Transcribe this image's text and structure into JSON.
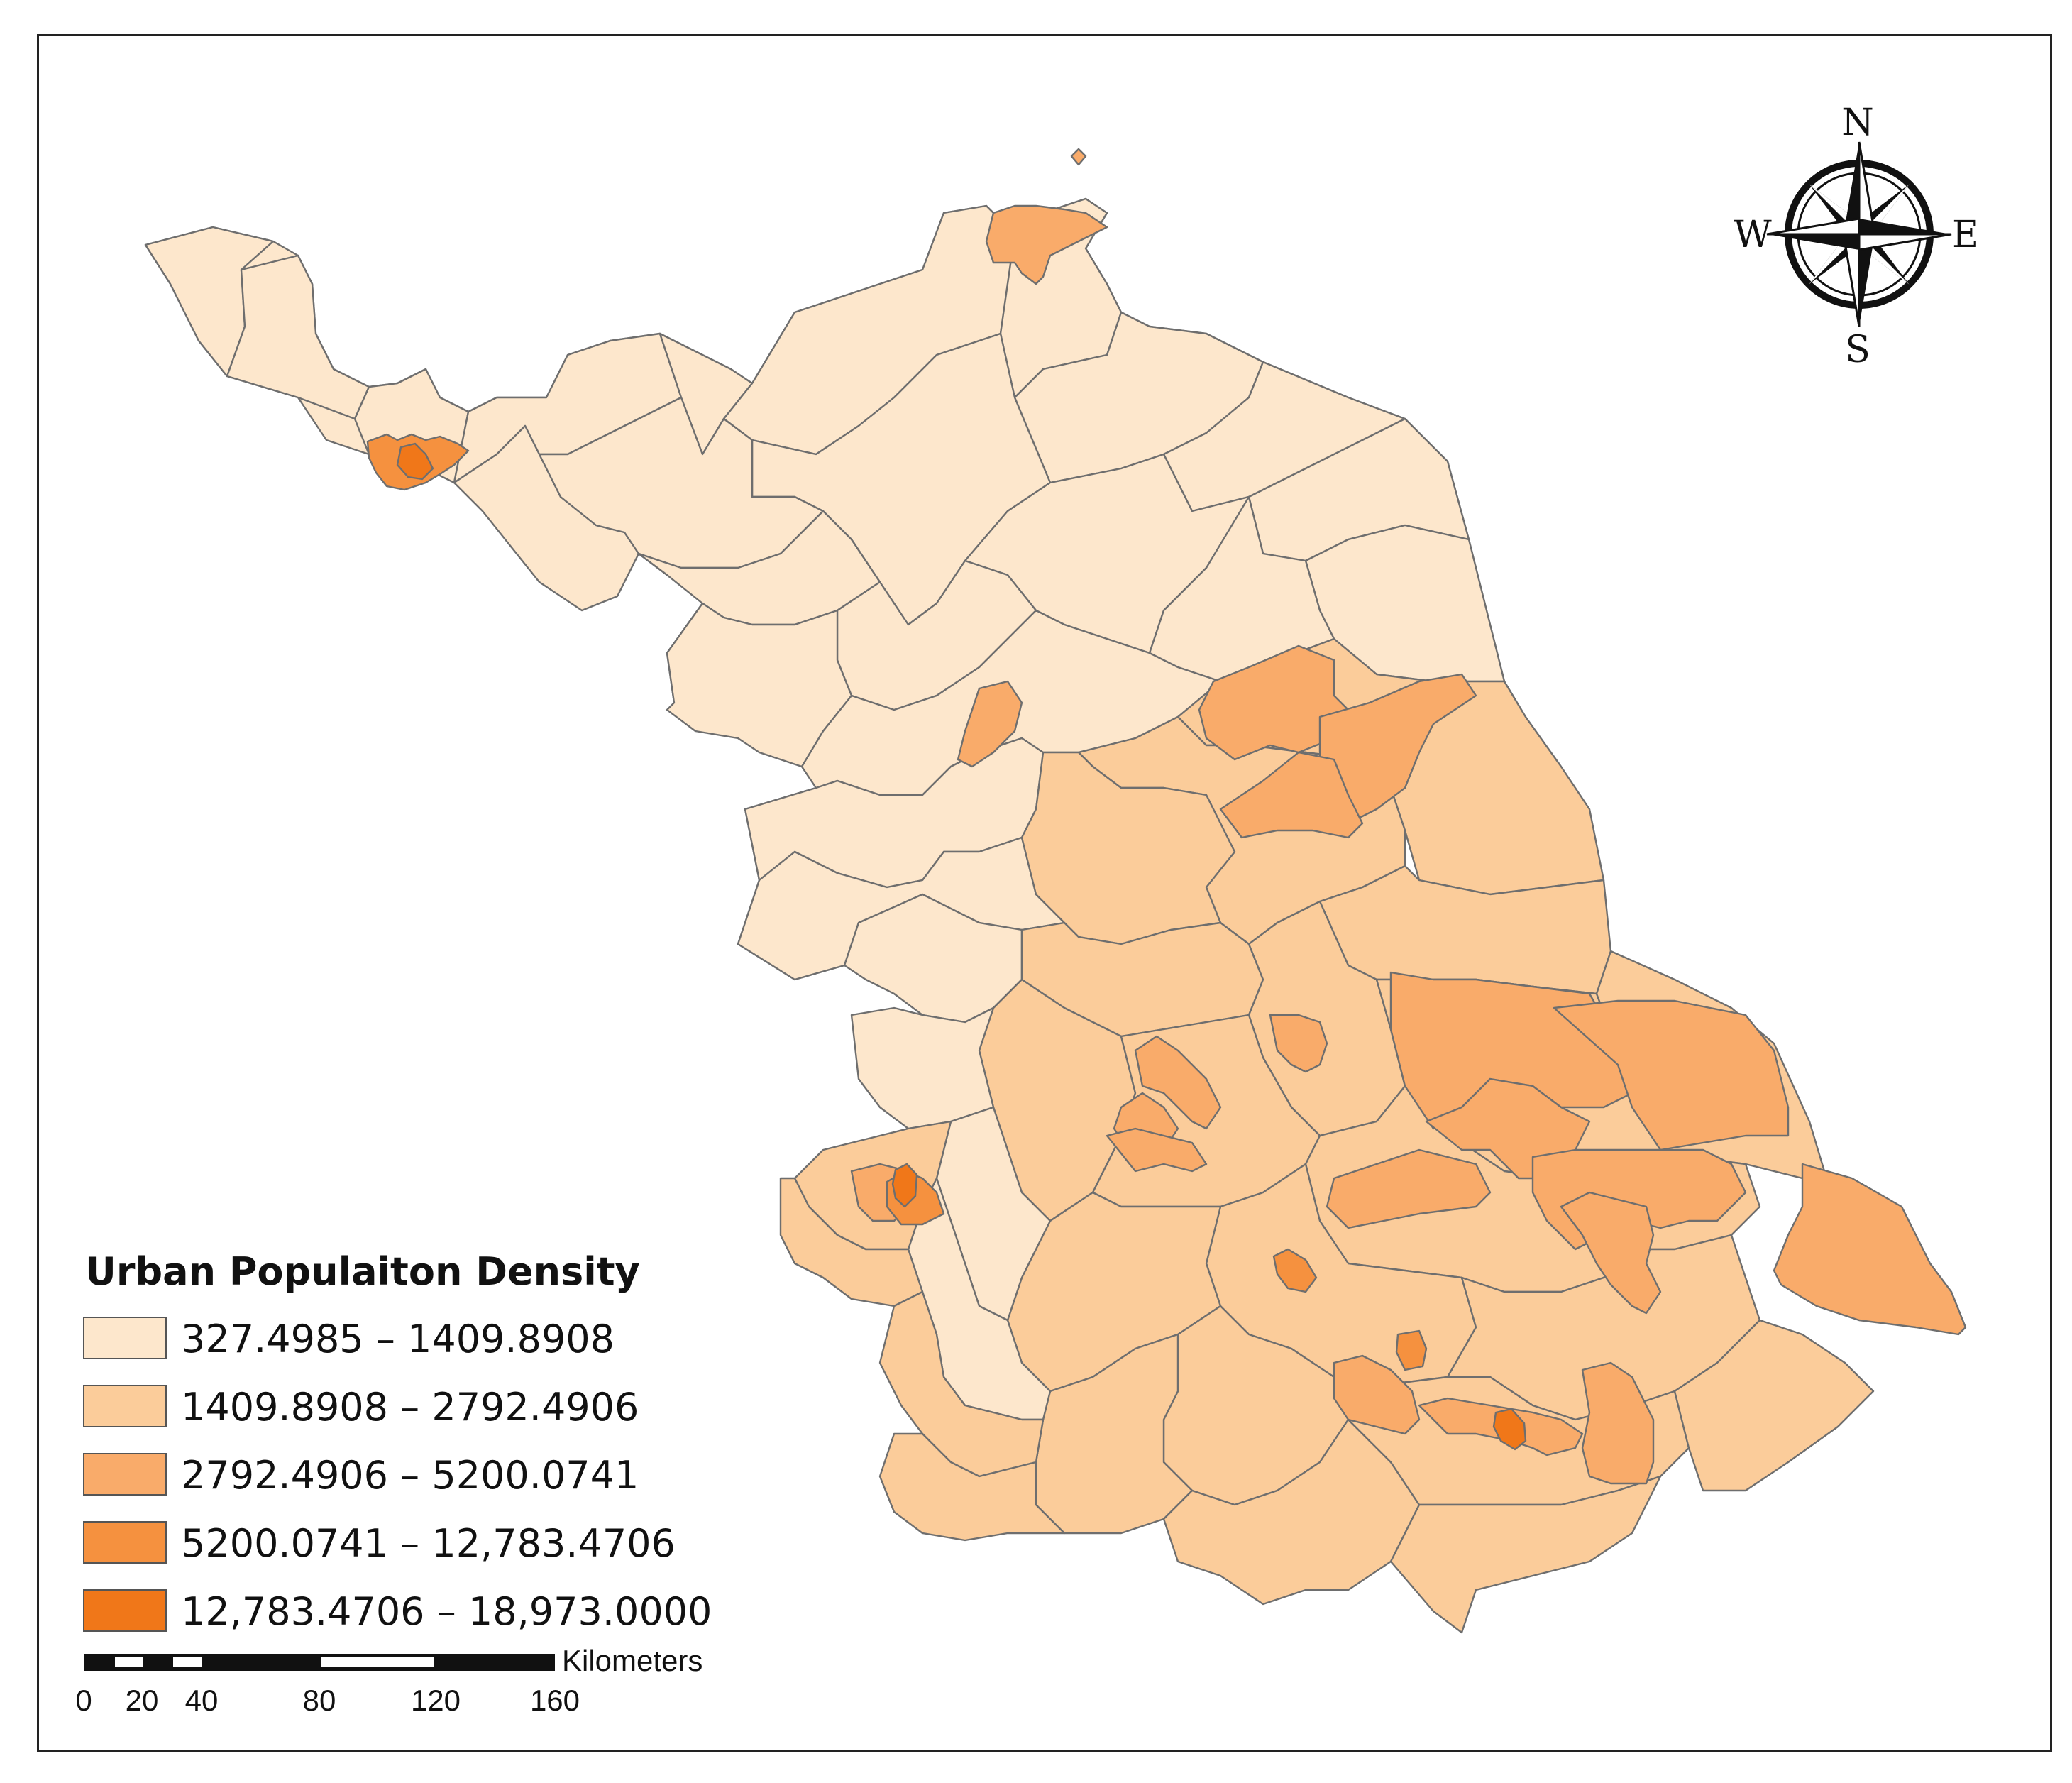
{
  "legend": {
    "title": "Urban Populaiton Density",
    "classes": [
      {
        "label": "327.4985 – 1409.8908",
        "color": "#fde7cc"
      },
      {
        "label": "1409.8908 – 2792.4906",
        "color": "#fbcc9a"
      },
      {
        "label": "2792.4906 – 5200.0741",
        "color": "#f9ab6a"
      },
      {
        "label": "5200.0741 – 12,783.4706",
        "color": "#f5913f"
      },
      {
        "label": "12,783.4706 – 18,973.0000",
        "color": "#f07719"
      }
    ]
  },
  "scale_bar": {
    "unit": "Kilometers",
    "ticks": [
      "0",
      "20",
      "40",
      "80",
      "120",
      "160"
    ]
  },
  "compass": {
    "n": "N",
    "s": "S",
    "e": "E",
    "w": "W"
  }
}
